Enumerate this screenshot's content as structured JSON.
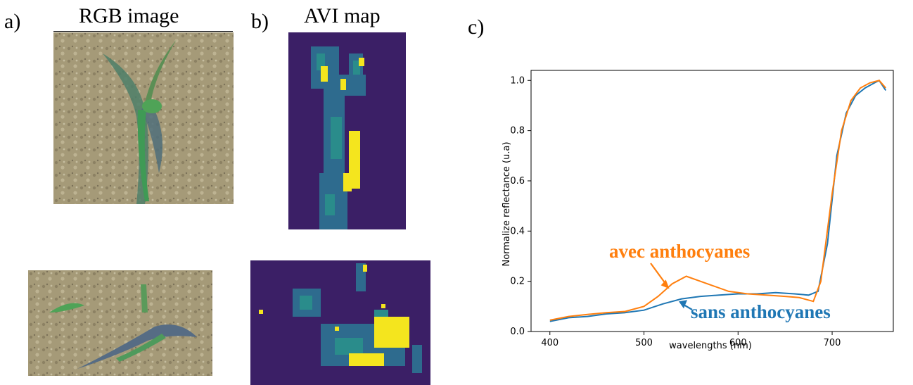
{
  "panels": {
    "a": {
      "label": "a)",
      "title": "RGB image"
    },
    "b": {
      "label": "b)",
      "title": "AVI map"
    },
    "c": {
      "label": "c)"
    }
  },
  "colors": {
    "soil": "#a59a78",
    "leaf": "#4f8a55",
    "avi_background": "#3b1f66",
    "avi_high": "#f4e51e",
    "avi_mid": "#2a8c8b",
    "series_orange": "#ff7f0e",
    "series_blue": "#1f77b4"
  },
  "chart_data": {
    "type": "line",
    "title": "",
    "xlabel": "wavelengths (nm)",
    "ylabel": "Normalize reflectance (u.a)",
    "xlim": [
      380,
      765
    ],
    "ylim": [
      0.0,
      1.04
    ],
    "xticks": [
      400,
      500,
      600,
      700
    ],
    "yticks": [
      0.0,
      0.2,
      0.4,
      0.6,
      0.8,
      1.0
    ],
    "ytick_labels": [
      "0.0",
      "0.2",
      "0.4",
      "0.6",
      "0.8",
      "1.0"
    ],
    "grid": false,
    "series": [
      {
        "name": "sans anthocyanes",
        "color": "#1f77b4",
        "x": [
          400,
          420,
          440,
          460,
          480,
          500,
          520,
          540,
          560,
          580,
          600,
          620,
          640,
          660,
          675,
          685,
          695,
          705,
          715,
          725,
          735,
          745,
          750,
          757
        ],
        "y": [
          0.04,
          0.055,
          0.06,
          0.07,
          0.075,
          0.085,
          0.11,
          0.13,
          0.14,
          0.145,
          0.15,
          0.15,
          0.155,
          0.15,
          0.145,
          0.16,
          0.35,
          0.7,
          0.87,
          0.94,
          0.97,
          0.99,
          1.0,
          0.96
        ]
      },
      {
        "name": "avec anthocyanes",
        "color": "#ff7f0e",
        "x": [
          400,
          420,
          440,
          460,
          480,
          500,
          515,
          530,
          545,
          560,
          575,
          590,
          610,
          630,
          650,
          665,
          680,
          688,
          700,
          710,
          720,
          730,
          740,
          750,
          757
        ],
        "y": [
          0.045,
          0.06,
          0.068,
          0.075,
          0.08,
          0.1,
          0.14,
          0.19,
          0.22,
          0.2,
          0.18,
          0.16,
          0.15,
          0.145,
          0.14,
          0.135,
          0.12,
          0.2,
          0.55,
          0.8,
          0.92,
          0.97,
          0.99,
          1.0,
          0.97
        ]
      }
    ],
    "annotations": [
      {
        "text": "avec anthocyanes",
        "series": "avec anthocyanes",
        "arrow_to": [
          527,
          0.17
        ]
      },
      {
        "text": "sans anthocyanes",
        "series": "sans anthocyanes",
        "arrow_to": [
          537,
          0.12
        ]
      }
    ]
  }
}
